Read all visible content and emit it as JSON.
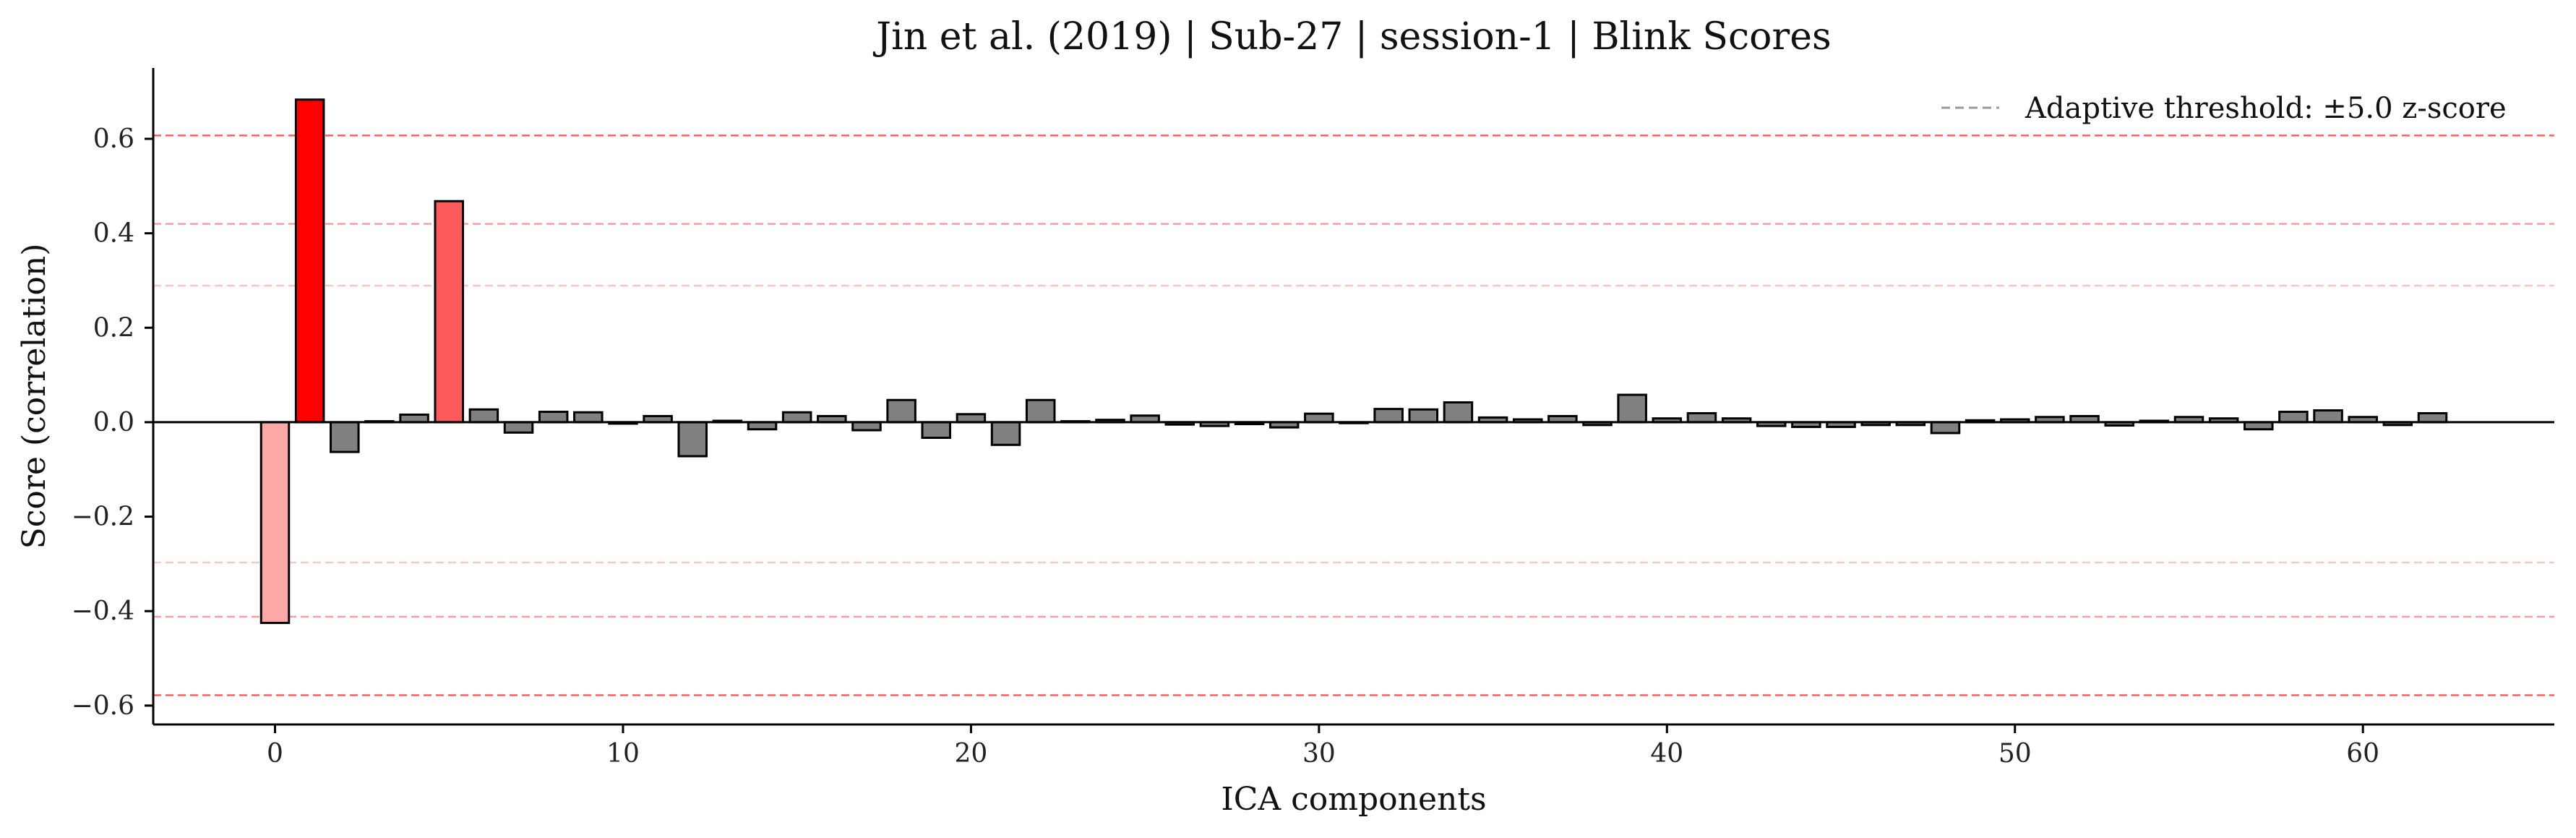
{
  "chart_data": {
    "type": "bar",
    "title": "Jin et al. (2019) | Sub-27 | session-1 | Blink Scores",
    "xlabel": "ICA components",
    "ylabel": "Score (correlation)",
    "xlim": [
      -3.5,
      65.5
    ],
    "ylim": [
      -0.64,
      0.75
    ],
    "xticks": [
      0,
      10,
      20,
      30,
      40,
      50,
      60
    ],
    "xtick_labels": [
      "0",
      "10",
      "20",
      "30",
      "40",
      "50",
      "60"
    ],
    "yticks": [
      -0.6,
      -0.4,
      -0.2,
      0.0,
      0.2,
      0.4,
      0.6
    ],
    "ytick_labels": [
      "−0.6",
      "−0.4",
      "−0.2",
      "0.0",
      "0.2",
      "0.4",
      "0.6"
    ],
    "grid": false,
    "legend": {
      "position": "top-right",
      "entries": [
        "Adaptive threshold: ±5.0 z-score"
      ]
    },
    "categories": [
      0,
      1,
      2,
      3,
      4,
      5,
      6,
      7,
      8,
      9,
      10,
      11,
      12,
      13,
      14,
      15,
      16,
      17,
      18,
      19,
      20,
      21,
      22,
      23,
      24,
      25,
      26,
      27,
      28,
      29,
      30,
      31,
      32,
      33,
      34,
      35,
      36,
      37,
      38,
      39,
      40,
      41,
      42,
      43,
      44,
      45,
      46,
      47,
      48,
      49,
      50,
      51,
      52,
      53,
      54,
      55,
      56,
      57,
      58,
      59,
      60,
      61,
      62
    ],
    "values": [
      -0.425,
      0.683,
      -0.063,
      0.002,
      0.016,
      0.468,
      0.027,
      -0.022,
      0.022,
      0.021,
      -0.003,
      0.013,
      -0.072,
      0.003,
      -0.015,
      0.021,
      0.013,
      -0.017,
      0.047,
      -0.033,
      0.017,
      -0.048,
      0.047,
      0.002,
      0.005,
      0.014,
      -0.005,
      -0.008,
      -0.004,
      -0.011,
      0.018,
      -0.002,
      0.028,
      0.027,
      0.042,
      0.01,
      0.006,
      0.013,
      -0.006,
      0.058,
      0.008,
      0.019,
      0.008,
      -0.008,
      -0.01,
      -0.01,
      -0.006,
      -0.006,
      -0.023,
      0.004,
      0.006,
      0.011,
      0.013,
      -0.007,
      0.003,
      0.011,
      0.008,
      -0.015,
      0.022,
      0.025,
      0.011,
      -0.006,
      0.019
    ],
    "highlight_colors": {
      "0": "#ffa8a8",
      "1": "#ff0000",
      "5": "#ff5a5a"
    },
    "default_bar_color": "#808080",
    "threshold_lines": [
      {
        "value": 0.607,
        "color": "#f06464"
      },
      {
        "value": 0.42,
        "color": "#f5a0a0"
      },
      {
        "value": 0.289,
        "color": "#fac8c0"
      },
      {
        "value": -0.297,
        "color": "#fac8c0"
      },
      {
        "value": -0.412,
        "color": "#f5a0a0"
      },
      {
        "value": -0.578,
        "color": "#f06464"
      }
    ],
    "legend_line_color": "#999999"
  }
}
